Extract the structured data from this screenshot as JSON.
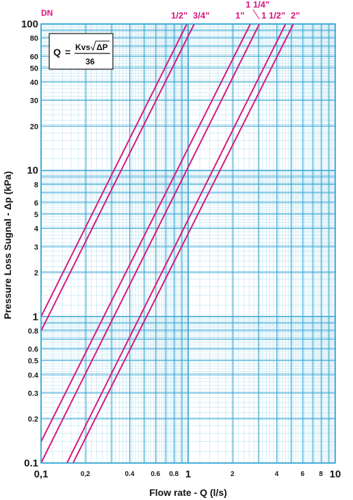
{
  "chart_data": {
    "type": "line",
    "title": "",
    "dn_label": "DN",
    "xlabel": "Flow rate - Q (l/s)",
    "ylabel": "Pressure Loss Sugnal  - Δp (kPa)",
    "x_scale": "log",
    "y_scale": "log",
    "xlim": [
      0.1,
      10
    ],
    "ylim": [
      0.1,
      100
    ],
    "grid": true,
    "x_ticks": [
      {
        "value": 0.1,
        "label": "0,1",
        "size": "big"
      },
      {
        "value": 0.2,
        "label": "0,2",
        "size": "small"
      },
      {
        "value": 0.4,
        "label": "0.4",
        "size": "small"
      },
      {
        "value": 0.6,
        "label": "0.6",
        "size": "small"
      },
      {
        "value": 0.8,
        "label": "0.8",
        "size": "small"
      },
      {
        "value": 1,
        "label": "1",
        "size": "big"
      },
      {
        "value": 2,
        "label": "2",
        "size": "small"
      },
      {
        "value": 4,
        "label": "4",
        "size": "small"
      },
      {
        "value": 6,
        "label": "6",
        "size": "small"
      },
      {
        "value": 8,
        "label": "8",
        "size": "small"
      },
      {
        "value": 10,
        "label": "10",
        "size": "big"
      }
    ],
    "y_ticks": [
      {
        "value": 100,
        "label": "100",
        "size": "big"
      },
      {
        "value": 80,
        "label": "80",
        "size": "small"
      },
      {
        "value": 60,
        "label": "60",
        "size": "small"
      },
      {
        "value": 50,
        "label": "50",
        "size": "small"
      },
      {
        "value": 40,
        "label": "40",
        "size": "small"
      },
      {
        "value": 30,
        "label": "30",
        "size": "small"
      },
      {
        "value": 20,
        "label": "20",
        "size": "small"
      },
      {
        "value": 10,
        "label": "10",
        "size": "big"
      },
      {
        "value": 8,
        "label": "8",
        "size": "small"
      },
      {
        "value": 6,
        "label": "6",
        "size": "small"
      },
      {
        "value": 5,
        "label": "5",
        "size": "small"
      },
      {
        "value": 4,
        "label": "4",
        "size": "small"
      },
      {
        "value": 3,
        "label": "3",
        "size": "small"
      },
      {
        "value": 2,
        "label": "2",
        "size": "small"
      },
      {
        "value": 1,
        "label": "1",
        "size": "big"
      },
      {
        "value": 0.8,
        "label": "0.8",
        "size": "small"
      },
      {
        "value": 0.6,
        "label": "0.6",
        "size": "small"
      },
      {
        "value": 0.5,
        "label": "0.5",
        "size": "small"
      },
      {
        "value": 0.4,
        "label": "0.4",
        "size": "small"
      },
      {
        "value": 0.3,
        "label": "0.3",
        "size": "small"
      },
      {
        "value": 0.2,
        "label": "0.2",
        "size": "small"
      },
      {
        "value": 0.1,
        "label": "0.1",
        "size": "big"
      }
    ],
    "series": [
      {
        "name": "1/2\"",
        "points": [
          [
            0.1,
            1.0
          ],
          [
            0.98,
            100
          ]
        ]
      },
      {
        "name": "3/4\"",
        "points": [
          [
            0.1,
            0.8
          ],
          [
            1.1,
            100
          ]
        ]
      },
      {
        "name": "1\"",
        "points": [
          [
            0.1,
            0.14
          ],
          [
            2.65,
            100
          ]
        ]
      },
      {
        "name": "1 1/4\"",
        "points": [
          [
            0.1,
            0.1
          ],
          [
            3.05,
            100
          ]
        ]
      },
      {
        "name": "1 1/2\"",
        "points": [
          [
            0.15,
            0.1
          ],
          [
            4.6,
            100
          ]
        ]
      },
      {
        "name": "2\"",
        "points": [
          [
            0.165,
            0.1
          ],
          [
            5.2,
            100
          ]
        ]
      }
    ],
    "formula": {
      "lhs": "Q",
      "eq": "=",
      "numerator": "Kvs",
      "radicand": "ΔP",
      "denominator": "36"
    },
    "colors": {
      "line": "#d8177e",
      "grid_major": "#2fa3d1",
      "grid_minor": "#a5d8ec",
      "frame": "#2fa3d1"
    }
  }
}
